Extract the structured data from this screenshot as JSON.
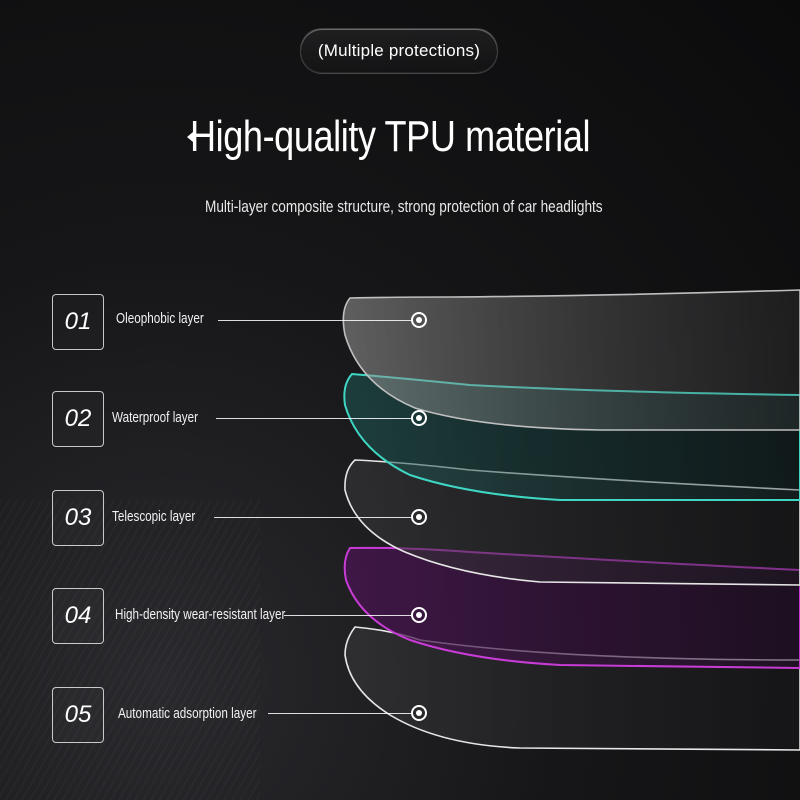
{
  "header": {
    "badge": "(Multiple protections)",
    "title": "High-quality TPU material",
    "subtitle": "Multi-layer composite structure, strong protection of car headlights"
  },
  "layers": [
    {
      "number": "01",
      "name": "Oleophobic layer",
      "color": "#bfbfbf"
    },
    {
      "number": "02",
      "name": "Waterproof layer",
      "color": "#3fd6c4"
    },
    {
      "number": "03",
      "name": "Telescopic layer",
      "color": "#e6e6e6"
    },
    {
      "number": "04",
      "name": "High-density wear-resistant layer",
      "color": "#c83cd6"
    },
    {
      "number": "05",
      "name": "Automatic adsorption layer",
      "color": "#e6e6e6"
    }
  ],
  "icons": {
    "callout": "target-dot-icon"
  }
}
